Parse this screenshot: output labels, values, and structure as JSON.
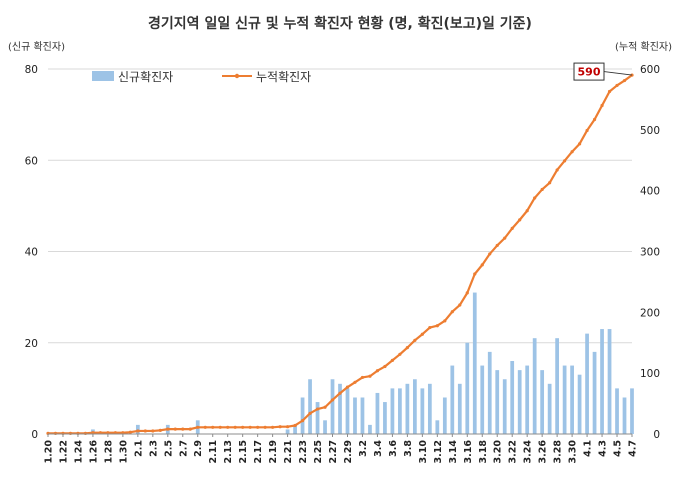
{
  "chart_data": {
    "type": "bar+line",
    "title": "경기지역 일일 신규 및 누적 확진자 현황 (명, 확진(보고)일 기준)",
    "left_axis_unit": "(신규 확진자)",
    "right_axis_unit": "(누적 확진자)",
    "left_ylim": [
      0,
      80
    ],
    "left_yticks": [
      0,
      20,
      40,
      60,
      80
    ],
    "right_ylim": [
      0,
      600
    ],
    "right_yticks": [
      0,
      100,
      200,
      300,
      400,
      500,
      600
    ],
    "grid": true,
    "legend_position": "top-left",
    "x_tick_labels": [
      "1.20",
      "1.22",
      "1.24",
      "1.26",
      "1.28",
      "1.30",
      "2.1",
      "2.3",
      "2.5",
      "2.7",
      "2.9",
      "2.11",
      "2.13",
      "2.15",
      "2.17",
      "2.19",
      "2.21",
      "2.23",
      "2.25",
      "2.27",
      "2.29",
      "3.2",
      "3.4",
      "3.6",
      "3.8",
      "3.10",
      "3.12",
      "3.14",
      "3.16",
      "3.18",
      "3.20",
      "3.22",
      "3.24",
      "3.26",
      "3.28",
      "3.30",
      "4.1",
      "4.3",
      "4.5",
      "4.7"
    ],
    "dates": [
      "1.20",
      "1.21",
      "1.22",
      "1.23",
      "1.24",
      "1.25",
      "1.26",
      "1.27",
      "1.28",
      "1.29",
      "1.30",
      "1.31",
      "2.1",
      "2.2",
      "2.3",
      "2.4",
      "2.5",
      "2.6",
      "2.7",
      "2.8",
      "2.9",
      "2.10",
      "2.11",
      "2.12",
      "2.13",
      "2.14",
      "2.15",
      "2.16",
      "2.17",
      "2.18",
      "2.19",
      "2.20",
      "2.21",
      "2.22",
      "2.23",
      "2.24",
      "2.25",
      "2.26",
      "2.27",
      "2.28",
      "2.29",
      "3.1",
      "3.2",
      "3.3",
      "3.4",
      "3.5",
      "3.6",
      "3.7",
      "3.8",
      "3.9",
      "3.10",
      "3.11",
      "3.12",
      "3.13",
      "3.14",
      "3.15",
      "3.16",
      "3.17",
      "3.18",
      "3.19",
      "3.20",
      "3.21",
      "3.22",
      "3.23",
      "3.24",
      "3.25",
      "3.26",
      "3.27",
      "3.28",
      "3.29",
      "3.30",
      "3.31",
      "4.1",
      "4.2",
      "4.3",
      "4.4",
      "4.5",
      "4.6",
      "4.7"
    ],
    "series": [
      {
        "name": "신규확진자",
        "type": "bar",
        "axis": "left",
        "color": "#9dc3e6",
        "values": [
          0,
          0,
          0,
          0,
          0,
          0,
          1,
          0,
          0,
          0,
          0,
          0,
          2,
          0,
          0,
          0,
          2,
          0,
          0,
          0,
          3,
          0,
          0,
          0,
          0,
          0,
          0,
          0,
          0,
          0,
          0,
          0,
          1,
          2,
          8,
          12,
          7,
          3,
          12,
          11,
          10,
          8,
          8,
          2,
          9,
          7,
          10,
          10,
          11,
          12,
          10,
          11,
          3,
          8,
          15,
          11,
          20,
          31,
          15,
          18,
          14,
          12,
          16,
          14,
          15,
          21,
          14,
          11,
          21,
          15,
          15,
          13,
          22,
          18,
          23,
          23,
          10,
          8,
          10
        ]
      },
      {
        "name": "누적확진자",
        "type": "line",
        "axis": "right",
        "color": "#ed7d31",
        "values": [
          1,
          1,
          1,
          1,
          1,
          1,
          2,
          2,
          2,
          2,
          2,
          3,
          5,
          5,
          5,
          6,
          8,
          8,
          8,
          8,
          11,
          11,
          11,
          11,
          11,
          11,
          11,
          11,
          11,
          11,
          11,
          12,
          12,
          14,
          22,
          34,
          41,
          44,
          56,
          67,
          77,
          85,
          93,
          95,
          104,
          111,
          121,
          131,
          142,
          154,
          164,
          175,
          178,
          186,
          201,
          212,
          232,
          263,
          278,
          296,
          310,
          322,
          338,
          352,
          367,
          388,
          402,
          413,
          434,
          449,
          464,
          477,
          499,
          517,
          540,
          563,
          573,
          581,
          590
        ]
      }
    ],
    "annotation": {
      "label": "590",
      "date": "4.7",
      "value": 590,
      "color": "#c00000"
    }
  }
}
